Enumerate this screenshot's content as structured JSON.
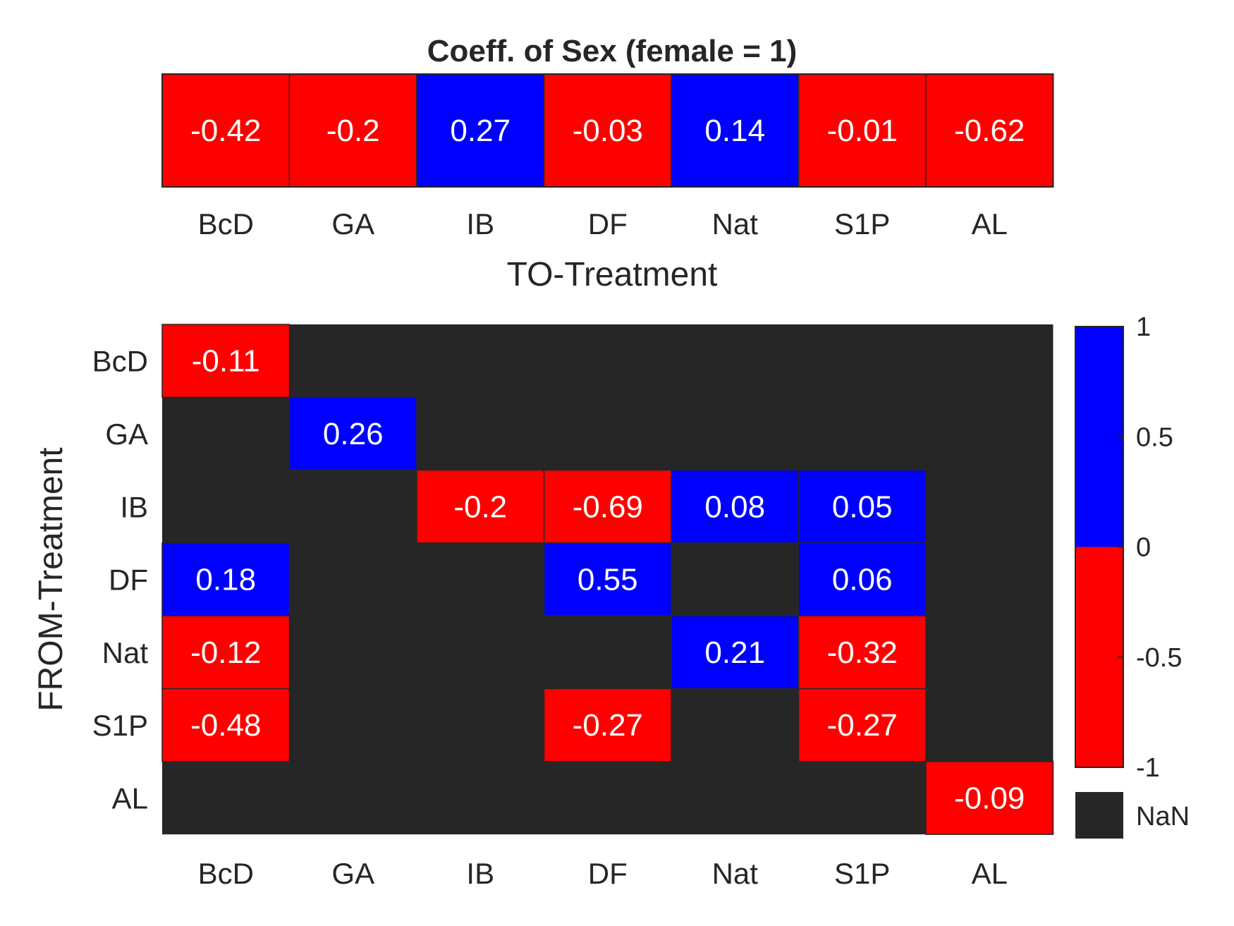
{
  "chart_data": [
    {
      "type": "heatmap",
      "title": "Coeff. of Sex (female = 1)",
      "xlabel": "TO-Treatment",
      "categories": [
        "BcD",
        "GA",
        "IB",
        "DF",
        "Nat",
        "S1P",
        "AL"
      ],
      "values": [
        -0.42,
        -0.2,
        0.27,
        -0.03,
        0.14,
        -0.01,
        -0.62
      ]
    },
    {
      "type": "heatmap",
      "xlabel": "",
      "ylabel": "FROM-Treatment",
      "x_categories": [
        "BcD",
        "GA",
        "IB",
        "DF",
        "Nat",
        "S1P",
        "AL"
      ],
      "y_categories": [
        "BcD",
        "GA",
        "IB",
        "DF",
        "Nat",
        "S1P",
        "AL"
      ],
      "matrix": [
        [
          -0.11,
          null,
          null,
          null,
          null,
          null,
          null
        ],
        [
          null,
          0.26,
          null,
          null,
          null,
          null,
          null
        ],
        [
          null,
          null,
          -0.2,
          -0.69,
          0.08,
          0.05,
          null
        ],
        [
          0.18,
          null,
          null,
          0.55,
          null,
          0.06,
          null
        ],
        [
          -0.12,
          null,
          null,
          null,
          0.21,
          -0.32,
          null
        ],
        [
          -0.48,
          null,
          null,
          -0.27,
          null,
          -0.27,
          null
        ],
        [
          null,
          null,
          null,
          null,
          null,
          null,
          -0.09
        ]
      ],
      "colorbar": {
        "ticks": [
          "1",
          "0.5",
          "0",
          "-0.5",
          "-1"
        ],
        "tick_values": [
          1,
          0.5,
          0,
          -0.5,
          -1
        ],
        "range": [
          -1,
          1
        ],
        "nan_label": "NaN"
      }
    }
  ],
  "colors": {
    "negative": "#ff0000",
    "positive": "#0000ff",
    "nan": "#262626",
    "text": "#262626",
    "cell_text": "#ffffff"
  }
}
